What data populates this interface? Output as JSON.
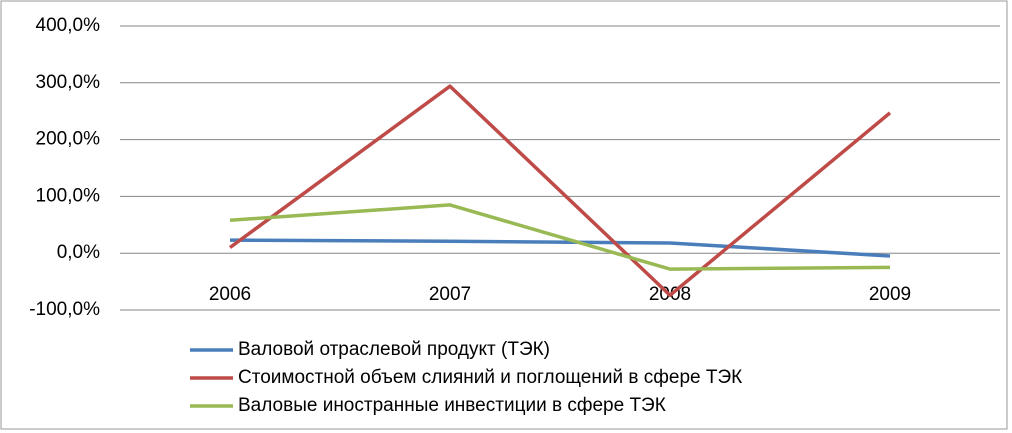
{
  "chart_data": {
    "type": "line",
    "categories": [
      "2006",
      "2007",
      "2008",
      "2009"
    ],
    "series": [
      {
        "name": "Валовой отраслевой продукт (ТЭК)",
        "color": "#4a7ebb",
        "values": [
          23,
          21,
          18,
          -5
        ]
      },
      {
        "name": "Стоимостной объем слияний и поглощений в сфере ТЭК",
        "color": "#be4b48",
        "values": [
          10,
          294,
          -74,
          247
        ]
      },
      {
        "name": "Валовые иностранные инвестиции в сфере ТЭК",
        "color": "#98b954",
        "values": [
          58,
          85,
          -28,
          -25
        ]
      }
    ],
    "ylim": [
      -100,
      400
    ],
    "yticks": [
      {
        "value": -100,
        "label": "-100,0%"
      },
      {
        "value": 0,
        "label": "0,0%"
      },
      {
        "value": 100,
        "label": "100,0%"
      },
      {
        "value": 200,
        "label": "200,0%"
      },
      {
        "value": 300,
        "label": "300,0%"
      },
      {
        "value": 400,
        "label": "400,0%"
      }
    ],
    "grid": true,
    "legend": "bottom"
  }
}
